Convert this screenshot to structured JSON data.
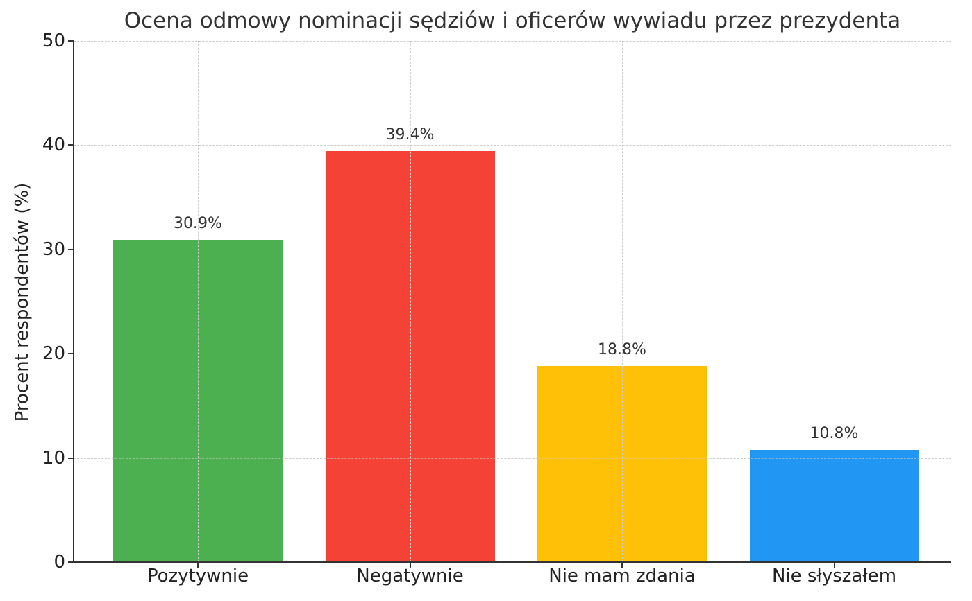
{
  "chart_data": {
    "type": "bar",
    "title": "Ocena odmowy nominacji sędziów i oficerów wywiadu przez prezydenta",
    "xlabel": "",
    "ylabel": "Procent respondentów (%)",
    "categories": [
      "Pozytywnie",
      "Negatywnie",
      "Nie mam zdania",
      "Nie słyszałem"
    ],
    "values": [
      30.9,
      39.4,
      18.8,
      10.8
    ],
    "value_labels": [
      "30.9%",
      "39.4%",
      "18.8%",
      "10.8%"
    ],
    "colors": [
      "#4caf50",
      "#f44336",
      "#ffc107",
      "#2196f3"
    ],
    "ylim": [
      0,
      50
    ],
    "yticks": [
      0,
      10,
      20,
      30,
      40,
      50
    ],
    "ytick_labels": [
      "0",
      "10",
      "20",
      "30",
      "40",
      "50"
    ],
    "grid": true,
    "legend": null
  }
}
